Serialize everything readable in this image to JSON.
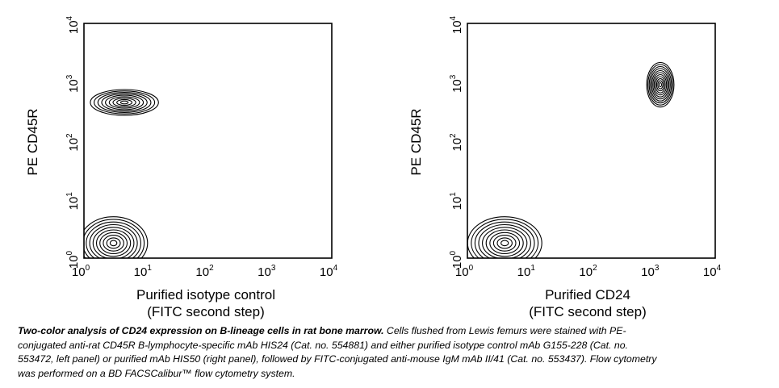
{
  "chart_data": [
    {
      "type": "contour",
      "panel": "left",
      "xscale": "log",
      "yscale": "log",
      "xlim": [
        1,
        10000
      ],
      "ylim": [
        1,
        10000
      ],
      "x_ticks": [
        "10",
        "10",
        "10",
        "10",
        "10"
      ],
      "x_tick_exponents": [
        "0",
        "1",
        "2",
        "3",
        "4"
      ],
      "y_ticks": [
        "10",
        "10",
        "10",
        "10",
        "10"
      ],
      "y_tick_exponents": [
        "0",
        "1",
        "2",
        "3",
        "4"
      ],
      "ylabel": "PE CD45R",
      "xlabel_line1": "Purified isotype control",
      "xlabel_line2": "(FITC second step)",
      "populations": [
        {
          "center": [
            4.5,
            450
          ],
          "spread_log": [
            0.55,
            0.22
          ],
          "levels": 9
        },
        {
          "center": [
            3,
            1.8
          ],
          "spread_log": [
            0.55,
            0.45
          ],
          "levels": 10
        }
      ]
    },
    {
      "type": "contour",
      "panel": "right",
      "xscale": "log",
      "yscale": "log",
      "xlim": [
        1,
        10000
      ],
      "ylim": [
        1,
        10000
      ],
      "x_ticks": [
        "10",
        "10",
        "10",
        "10",
        "10"
      ],
      "x_tick_exponents": [
        "0",
        "1",
        "2",
        "3",
        "4"
      ],
      "y_ticks": [
        "10",
        "10",
        "10",
        "10",
        "10"
      ],
      "y_tick_exponents": [
        "0",
        "1",
        "2",
        "3",
        "4"
      ],
      "ylabel": "PE CD45R",
      "xlabel_line1": "Purified CD24",
      "xlabel_line2": "(FITC second step)",
      "populations": [
        {
          "center": [
            1300,
            900
          ],
          "spread_log": [
            0.22,
            0.38
          ],
          "levels": 11
        },
        {
          "center": [
            4,
            1.8
          ],
          "spread_log": [
            0.6,
            0.45
          ],
          "levels": 10
        }
      ]
    }
  ],
  "caption": {
    "lead": "Two-color analysis of CD24 expression on B-lineage cells in rat bone marrow.",
    "body": " Cells flushed from Lewis femurs were stained with PE-conjugated anti-rat CD45R B-lymphocyte-specific mAb HIS24 (Cat. no. 554881) and either purified isotype control mAb G155-228 (Cat. no. 553472, left panel) or purified mAb HIS50 (right panel), followed by FITC-conjugated anti-mouse IgM mAb II/41 (Cat. no. 553437). Flow cytometry was performed on a BD FACSCalibur™ flow cytometry system."
  }
}
